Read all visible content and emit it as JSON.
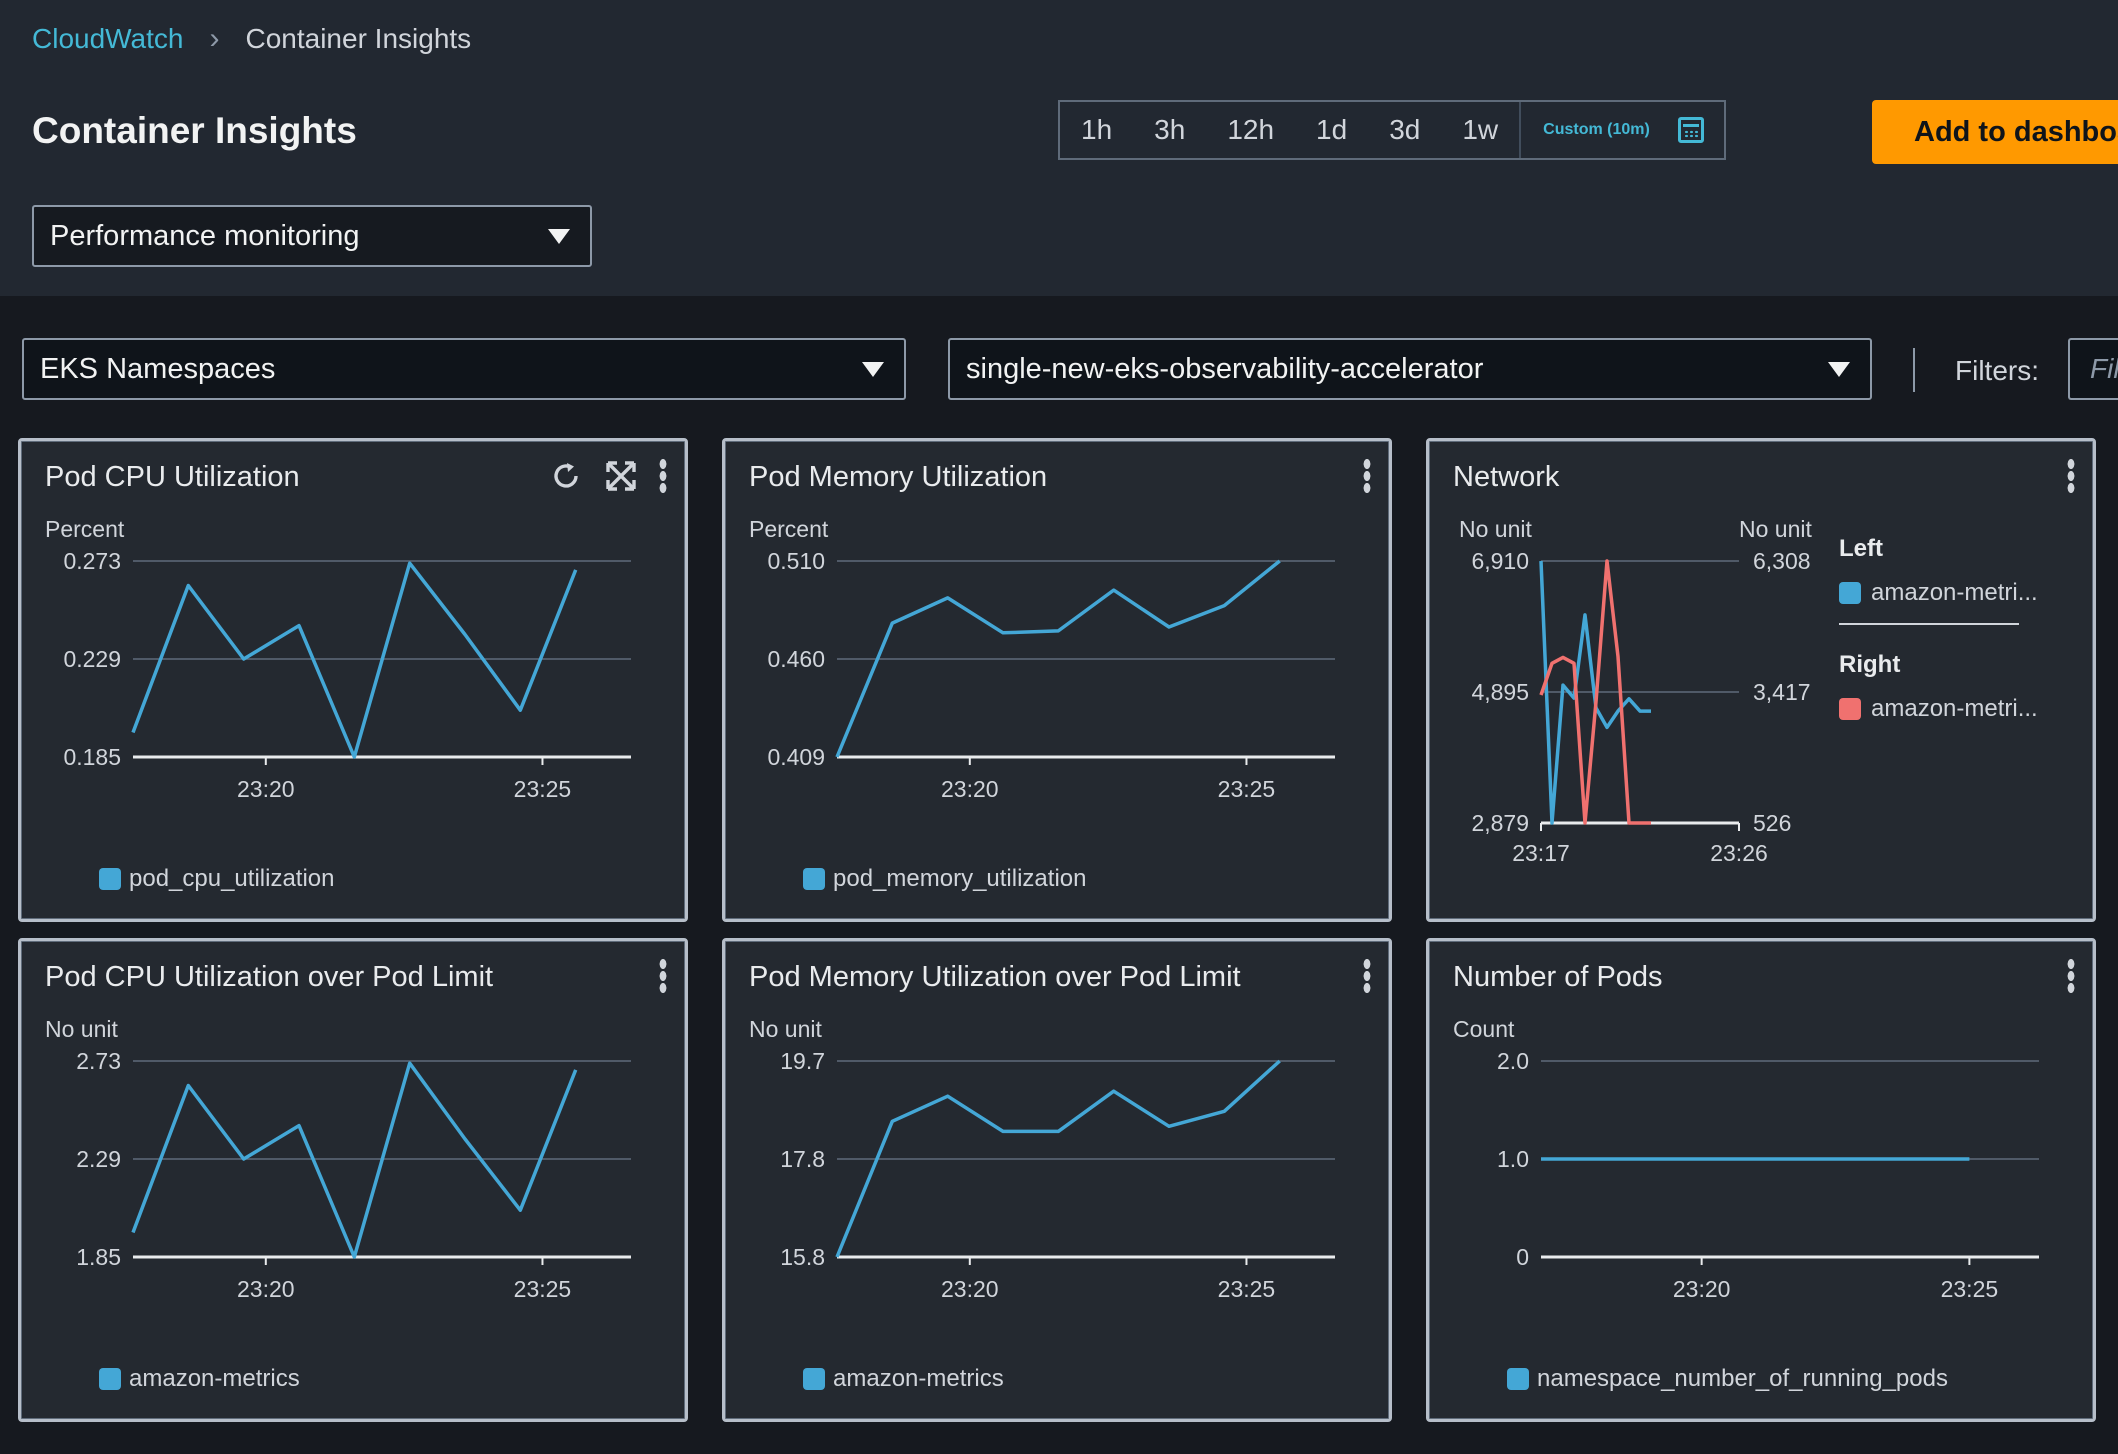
{
  "breadcrumb": {
    "root": "CloudWatch",
    "current": "Container Insights"
  },
  "page_title": "Container Insights",
  "time_range": {
    "options": [
      "1h",
      "3h",
      "12h",
      "1d",
      "3d",
      "1w"
    ],
    "custom": "Custom (10m)"
  },
  "add_button": "Add to dashboard",
  "view_select": "Performance monitoring",
  "resource_select": "EKS Namespaces",
  "cluster_select": "single-new-eks-observability-accelerator",
  "filters": {
    "label": "Filters:",
    "placeholder": "Filter"
  },
  "colors": {
    "series_blue": "#44a7d6",
    "series_red": "#f0716f",
    "accent": "#44b9d6",
    "button": "#ff9900"
  },
  "panels": [
    {
      "title": "Pod CPU Utilization",
      "unit": "Percent",
      "legend": "pod_cpu_utilization",
      "tools": [
        "refresh-icon",
        "fullscreen-icon",
        "menu-icon"
      ],
      "chart_data": {
        "type": "line",
        "yticks": [
          "0.273",
          "0.229",
          "0.185"
        ],
        "ylim": [
          0.185,
          0.273
        ],
        "xticks": [
          "23:20",
          "23:25"
        ],
        "xlim": [
          17.6,
          26.6
        ],
        "series": [
          {
            "name": "pod_cpu_utilization",
            "x": [
              17.6,
              18.6,
              19.6,
              20.6,
              21.6,
              22.6,
              23.6,
              24.6,
              25.6
            ],
            "values": [
              0.196,
              0.262,
              0.229,
              0.244,
              0.185,
              0.272,
              0.24,
              0.206,
              0.269
            ]
          }
        ]
      }
    },
    {
      "title": "Pod Memory Utilization",
      "unit": "Percent",
      "legend": "pod_memory_utilization",
      "tools": [
        "menu-icon"
      ],
      "chart_data": {
        "type": "line",
        "yticks": [
          "0.510",
          "0.460",
          "0.409"
        ],
        "ylim": [
          0.409,
          0.51
        ],
        "xticks": [
          "23:20",
          "23:25"
        ],
        "xlim": [
          17.6,
          26.6
        ],
        "series": [
          {
            "name": "pod_memory_utilization",
            "x": [
              17.6,
              18.6,
              19.6,
              20.6,
              21.6,
              22.6,
              23.6,
              24.6,
              25.6
            ],
            "values": [
              0.409,
              0.478,
              0.491,
              0.473,
              0.474,
              0.495,
              0.476,
              0.487,
              0.51
            ]
          }
        ]
      }
    },
    {
      "title": "Pod CPU Utilization over Pod Limit",
      "unit": "No unit",
      "legend": "amazon-metrics",
      "tools": [
        "menu-icon"
      ],
      "chart_data": {
        "type": "line",
        "yticks": [
          "2.73",
          "2.29",
          "1.85"
        ],
        "ylim": [
          1.85,
          2.73
        ],
        "xticks": [
          "23:20",
          "23:25"
        ],
        "xlim": [
          17.6,
          26.6
        ],
        "series": [
          {
            "name": "amazon-metrics",
            "x": [
              17.6,
              18.6,
              19.6,
              20.6,
              21.6,
              22.6,
              23.6,
              24.6,
              25.6
            ],
            "values": [
              1.96,
              2.62,
              2.29,
              2.44,
              1.85,
              2.72,
              2.38,
              2.06,
              2.69
            ]
          }
        ]
      }
    },
    {
      "title": "Pod Memory Utilization over Pod Limit",
      "unit": "No unit",
      "legend": "amazon-metrics",
      "tools": [
        "menu-icon"
      ],
      "chart_data": {
        "type": "line",
        "yticks": [
          "19.7",
          "17.8",
          "15.8"
        ],
        "ylim": [
          15.8,
          19.7
        ],
        "xticks": [
          "23:20",
          "23:25"
        ],
        "xlim": [
          17.6,
          26.6
        ],
        "series": [
          {
            "name": "amazon-metrics",
            "x": [
              17.6,
              18.6,
              19.6,
              20.6,
              21.6,
              22.6,
              23.6,
              24.6,
              25.6
            ],
            "values": [
              15.8,
              18.5,
              19.0,
              18.3,
              18.3,
              19.1,
              18.4,
              18.7,
              19.7
            ]
          }
        ]
      }
    },
    {
      "title": "Number of Pods",
      "unit": "Count",
      "legend": "namespace_number_of_running_pods",
      "tools": [
        "menu-icon"
      ],
      "chart_data": {
        "type": "line",
        "yticks": [
          "2.0",
          "1.0",
          "0"
        ],
        "ylim": [
          0,
          2
        ],
        "xticks": [
          "23:20",
          "23:25"
        ],
        "xlim": [
          17.0,
          26.3
        ],
        "series": [
          {
            "name": "namespace_number_of_running_pods",
            "x": [
              17.0,
              25.0
            ],
            "values": [
              1.0,
              1.0
            ]
          }
        ]
      }
    }
  ],
  "network": {
    "title": "Network",
    "unit_left": "No unit",
    "unit_right": "No unit",
    "legend_left_title": "Left",
    "legend_left_item": "amazon-metri...",
    "legend_right_title": "Right",
    "legend_right_item": "amazon-metri...",
    "chart_data": {
      "type": "line",
      "yticks_left": [
        "6,910",
        "4,895",
        "2,879"
      ],
      "ylim_left": [
        2879,
        6910
      ],
      "yticks_right": [
        "6,308",
        "3,417",
        "526"
      ],
      "ylim_right": [
        526,
        6308
      ],
      "xticks": [
        "23:17",
        "23:26"
      ],
      "xlim": [
        17,
        26
      ],
      "series": [
        {
          "name": "amazon-metri...",
          "axis": "left",
          "x": [
            17.0,
            17.5,
            18.0,
            18.5,
            19.0,
            19.5,
            20.0,
            20.5,
            21.0,
            21.5,
            22.0
          ],
          "values": [
            6910,
            2879,
            5000,
            4800,
            6080,
            4650,
            4350,
            4600,
            4790,
            4600,
            4600
          ]
        },
        {
          "name": "amazon-metri...",
          "axis": "right",
          "x": [
            17.0,
            17.5,
            18.0,
            18.5,
            19.0,
            19.5,
            20.0,
            20.5,
            21.0,
            21.5,
            22.0
          ],
          "values": [
            3350,
            4050,
            4180,
            4050,
            526,
            3200,
            6308,
            4200,
            526,
            526,
            526
          ]
        }
      ]
    }
  }
}
